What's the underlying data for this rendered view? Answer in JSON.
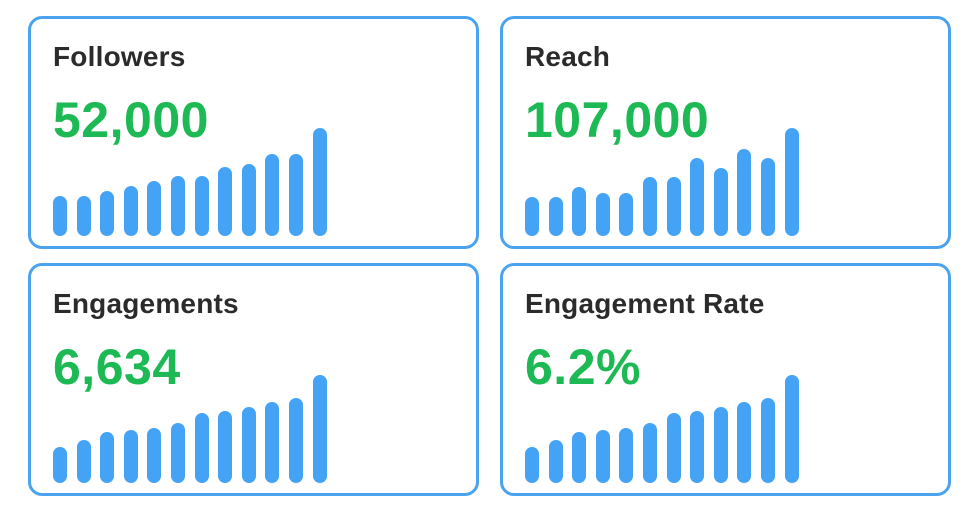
{
  "cards": [
    {
      "title": "Followers",
      "value": "52,000",
      "bar_levels": [
        0.37,
        0.37,
        0.42,
        0.46,
        0.51,
        0.56,
        0.56,
        0.64,
        0.67,
        0.76,
        0.76,
        1.0
      ]
    },
    {
      "title": "Reach",
      "value": "107,000",
      "bar_levels": [
        0.36,
        0.36,
        0.45,
        0.4,
        0.4,
        0.55,
        0.55,
        0.72,
        0.63,
        0.81,
        0.72,
        1.0
      ]
    },
    {
      "title": "Engagements",
      "value": "6,634",
      "bar_levels": [
        0.33,
        0.4,
        0.47,
        0.49,
        0.51,
        0.56,
        0.65,
        0.67,
        0.7,
        0.75,
        0.79,
        1.0
      ]
    },
    {
      "title": "Engagement Rate",
      "value": "6.2%",
      "bar_levels": [
        0.33,
        0.4,
        0.47,
        0.49,
        0.51,
        0.56,
        0.65,
        0.67,
        0.7,
        0.75,
        0.79,
        1.0
      ]
    }
  ],
  "colors": {
    "card_border": "#4ba3ee",
    "title": "#2b2b2b",
    "value": "#1db954",
    "bar": "#44a3f5"
  }
}
